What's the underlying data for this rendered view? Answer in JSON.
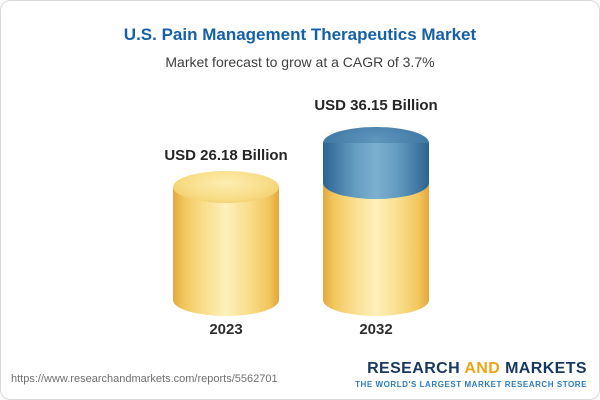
{
  "header": {
    "title": "U.S. Pain Management Therapeutics Market",
    "subtitle": "Market forecast to grow at a CAGR of 3.7%"
  },
  "chart_data": {
    "type": "bar",
    "categories": [
      "2023",
      "2032"
    ],
    "values": [
      26.18,
      36.15
    ],
    "value_labels": [
      "USD 26.18 Billion",
      "USD 36.15 Billion"
    ],
    "unit": "USD Billion",
    "cagr": "3.7%",
    "title": "U.S. Pain Management Therapeutics Market",
    "subtitle": "Market forecast to grow at a CAGR of 3.7%",
    "legend_position": "none",
    "grid": false,
    "colors": {
      "base": "#f6cd5e",
      "growth": "#3c7aa6"
    },
    "growth_segment": {
      "category": "2032",
      "from": 26.18,
      "to": 36.15
    }
  },
  "footer": {
    "url": "https://www.researchandmarkets.com/reports/5562701",
    "logo": {
      "research": "RESEARCH",
      "and": "AND",
      "markets": "MARKETS",
      "tagline": "THE WORLD'S LARGEST MARKET RESEARCH STORE"
    }
  }
}
